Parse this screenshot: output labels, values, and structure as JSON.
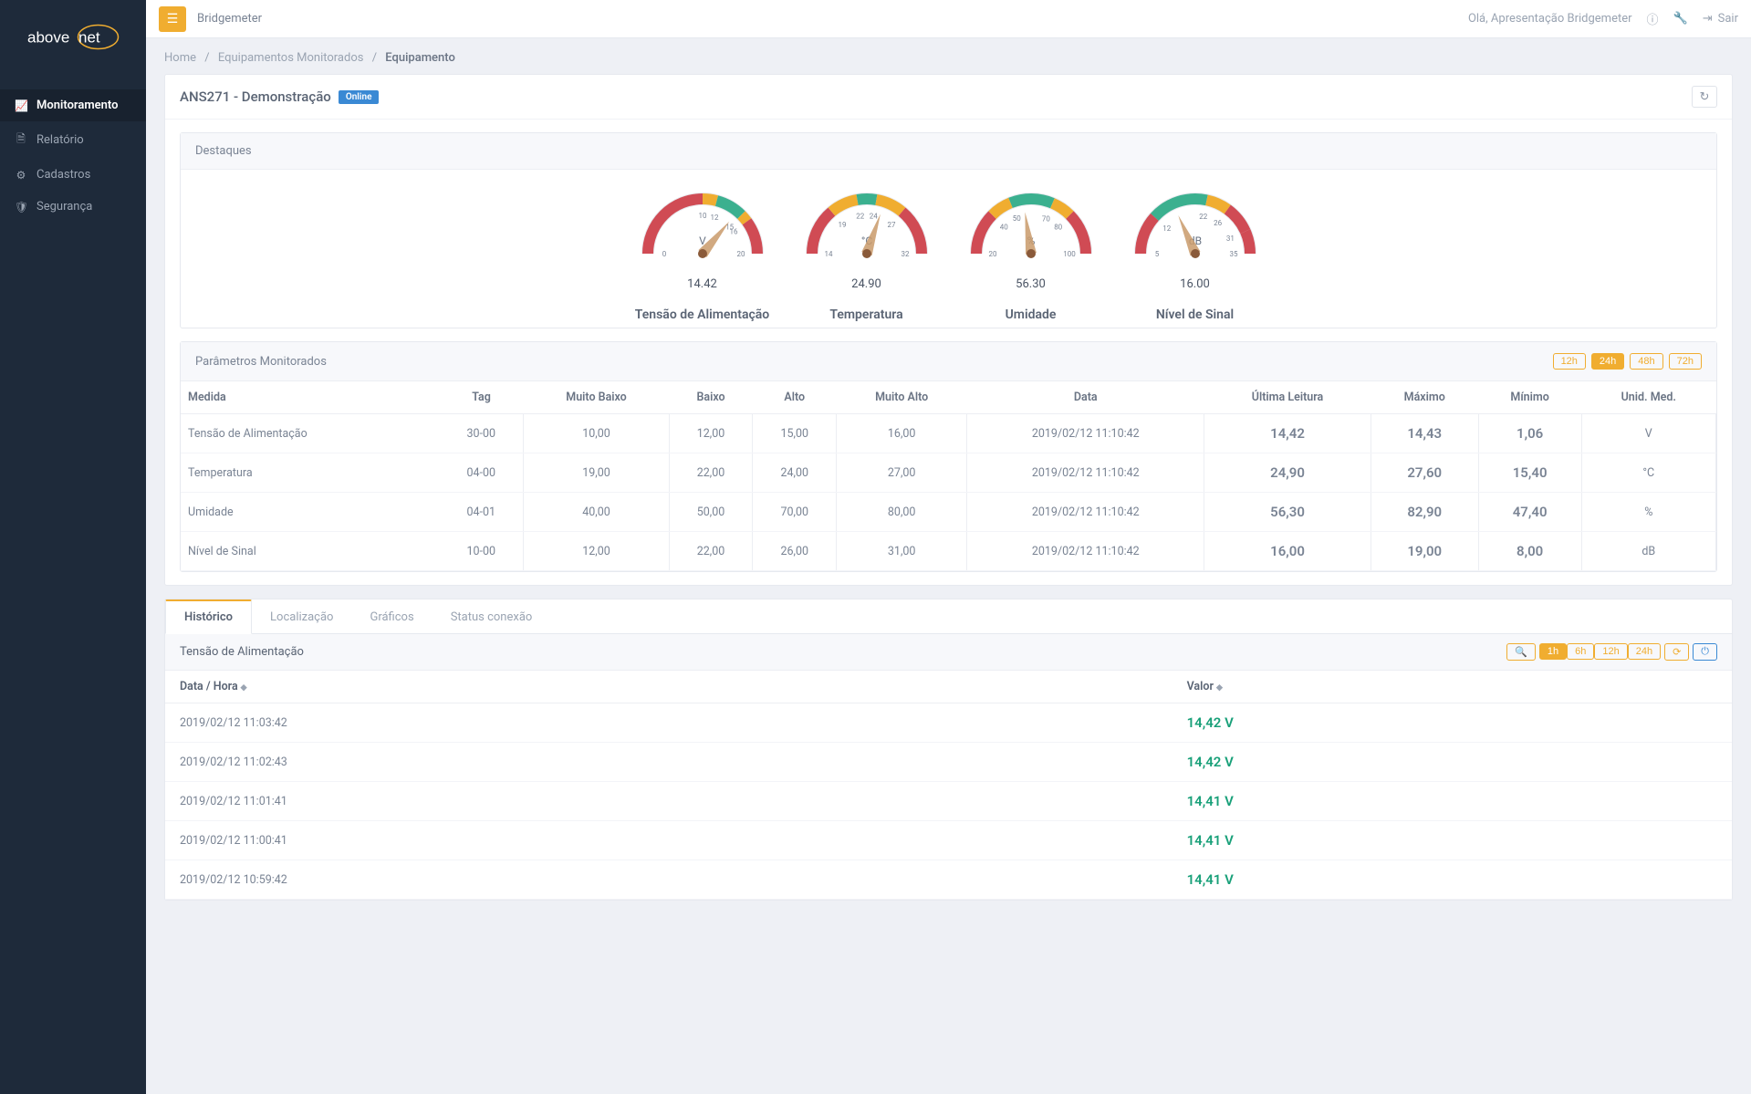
{
  "topbar": {
    "brand": "Bridgemeter",
    "greeting": "Olá, Apresentação Bridgemeter",
    "logout": "Sair"
  },
  "sidebar": {
    "items": [
      {
        "label": "Monitoramento",
        "icon": "chart-line-icon",
        "active": true
      },
      {
        "label": "Relatório",
        "icon": "file-icon",
        "active": false
      },
      {
        "label": "Cadastros",
        "icon": "gear-icon",
        "active": false
      },
      {
        "label": "Segurança",
        "icon": "shield-icon",
        "active": false
      }
    ]
  },
  "breadcrumb": {
    "home": "Home",
    "mid": "Equipamentos Monitorados",
    "current": "Equipamento"
  },
  "equipment": {
    "title": "ANS271 - Demonstração",
    "status": "Online"
  },
  "highlights": {
    "title": "Destaques",
    "gauges": [
      {
        "name": "Tensão de Alimentação",
        "unit": "V",
        "value": "14.42",
        "min": 0,
        "max": 20,
        "ticks": [
          "0",
          "10",
          "12",
          "15",
          "16",
          "20"
        ],
        "frac": 0.721,
        "zones": [
          {
            "a": -180,
            "b": -90,
            "c": "#d04b54"
          },
          {
            "a": -90,
            "b": -75,
            "c": "#f0ad30"
          },
          {
            "a": -75,
            "b": -45,
            "c": "#3bb08f"
          },
          {
            "a": -45,
            "b": -36,
            "c": "#f0ad30"
          },
          {
            "a": -36,
            "b": 0,
            "c": "#d04b54"
          }
        ],
        "tickAngles": [
          -180,
          -90,
          -72,
          -45,
          -36,
          0
        ]
      },
      {
        "name": "Temperatura",
        "unit": "°C",
        "value": "24.90",
        "min": 14,
        "max": 32,
        "ticks": [
          "14",
          "19",
          "22",
          "24",
          "27",
          "32"
        ],
        "frac": 0.605,
        "zones": [
          {
            "a": -180,
            "b": -130,
            "c": "#d04b54"
          },
          {
            "a": -130,
            "b": -100,
            "c": "#f0ad30"
          },
          {
            "a": -100,
            "b": -80,
            "c": "#3bb08f"
          },
          {
            "a": -80,
            "b": -50,
            "c": "#f0ad30"
          },
          {
            "a": -50,
            "b": 0,
            "c": "#d04b54"
          }
        ],
        "tickAngles": [
          -180,
          -130,
          -100,
          -80,
          -50,
          0
        ]
      },
      {
        "name": "Umidade",
        "unit": "%",
        "value": "56.30",
        "min": 20,
        "max": 100,
        "ticks": [
          "20",
          "40",
          "50",
          "70",
          "80",
          "100"
        ],
        "frac": 0.454,
        "zones": [
          {
            "a": -180,
            "b": -135,
            "c": "#d04b54"
          },
          {
            "a": -135,
            "b": -112,
            "c": "#f0ad30"
          },
          {
            "a": -112,
            "b": -67,
            "c": "#3bb08f"
          },
          {
            "a": -67,
            "b": -45,
            "c": "#f0ad30"
          },
          {
            "a": -45,
            "b": 0,
            "c": "#d04b54"
          }
        ],
        "tickAngles": [
          -180,
          -135,
          -112,
          -67,
          -45,
          0
        ]
      },
      {
        "name": "Nível de Sinal",
        "unit": "dB",
        "value": "16.00",
        "min": 5,
        "max": 35,
        "ticks": [
          "5",
          "12",
          "22",
          "26",
          "31",
          "35"
        ],
        "frac": 0.367,
        "zones": [
          {
            "a": -180,
            "b": -138,
            "c": "#d04b54"
          },
          {
            "a": -138,
            "b": -78,
            "c": "#3bb08f"
          },
          {
            "a": -78,
            "b": -54,
            "c": "#f0ad30"
          },
          {
            "a": -54,
            "b": -24,
            "c": "#d04b54"
          },
          {
            "a": -24,
            "b": 0,
            "c": "#d04b54"
          }
        ],
        "tickAngles": [
          -180,
          -138,
          -78,
          -54,
          -24,
          0
        ]
      }
    ]
  },
  "params": {
    "title": "Parâmetros Monitorados",
    "range_options": [
      "12h",
      "24h",
      "48h",
      "72h"
    ],
    "range_active": "24h",
    "columns": [
      "Medida",
      "Tag",
      "Muito Baixo",
      "Baixo",
      "Alto",
      "Muito Alto",
      "Data",
      "Última Leitura",
      "Máximo",
      "Mínimo",
      "Unid. Med."
    ],
    "rows": [
      {
        "medida": "Tensão de Alimentação",
        "tag": "30-00",
        "mbaixo": "10,00",
        "baixo": "12,00",
        "alto": "15,00",
        "malto": "16,00",
        "data": "2019/02/12 11:10:42",
        "ultima": "14,42",
        "ultima_class": "val-green",
        "max": "14,43",
        "max_class": "val-green",
        "min": "1,06",
        "min_class": "val-red",
        "unid": "V"
      },
      {
        "medida": "Temperatura",
        "tag": "04-00",
        "mbaixo": "19,00",
        "baixo": "22,00",
        "alto": "24,00",
        "malto": "27,00",
        "data": "2019/02/12 11:10:42",
        "ultima": "24,90",
        "ultima_class": "val-orange",
        "max": "27,60",
        "max_class": "val-red",
        "min": "15,40",
        "min_class": "val-red",
        "unid": "°C"
      },
      {
        "medida": "Umidade",
        "tag": "04-01",
        "mbaixo": "40,00",
        "baixo": "50,00",
        "alto": "70,00",
        "malto": "80,00",
        "data": "2019/02/12 11:10:42",
        "ultima": "56,30",
        "ultima_class": "val-green",
        "max": "82,90",
        "max_class": "val-red",
        "min": "47,40",
        "min_class": "val-orange",
        "unid": "%"
      },
      {
        "medida": "Nível de Sinal",
        "tag": "10-00",
        "mbaixo": "12,00",
        "baixo": "22,00",
        "alto": "26,00",
        "malto": "31,00",
        "data": "2019/02/12 11:10:42",
        "ultima": "16,00",
        "ultima_class": "val-orange",
        "max": "19,00",
        "max_class": "val-orange",
        "min": "8,00",
        "min_class": "val-red",
        "unid": "dB"
      }
    ]
  },
  "tabs": {
    "items": [
      "Histórico",
      "Localização",
      "Gráficos",
      "Status conexão"
    ],
    "active": "Histórico"
  },
  "history": {
    "title": "Tensão de Alimentação",
    "range_options": [
      "1h",
      "6h",
      "12h",
      "24h"
    ],
    "range_active": "1h",
    "columns": [
      "Data / Hora",
      "Valor"
    ],
    "rows": [
      {
        "datetime": "2019/02/12 11:03:42",
        "value": "14,42 V"
      },
      {
        "datetime": "2019/02/12 11:02:43",
        "value": "14,42 V"
      },
      {
        "datetime": "2019/02/12 11:01:41",
        "value": "14,41 V"
      },
      {
        "datetime": "2019/02/12 11:00:41",
        "value": "14,41 V"
      },
      {
        "datetime": "2019/02/12 10:59:42",
        "value": "14,41 V"
      }
    ]
  },
  "colors": {
    "accent": "#f0ad30",
    "sidebar_bg": "#1e2a3a",
    "green": "#19a079",
    "orange": "#e78b22",
    "red": "#d04b54",
    "blue": "#3a89d4"
  }
}
